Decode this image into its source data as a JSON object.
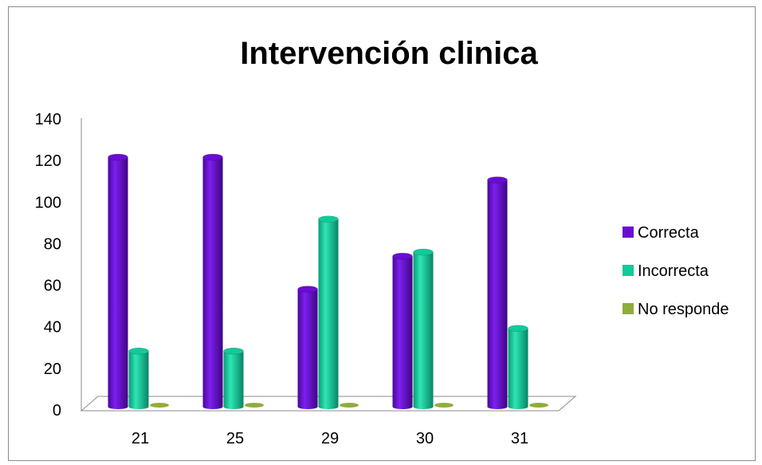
{
  "chart_data": {
    "type": "bar",
    "title": "Intervención clinica",
    "xlabel": "",
    "ylabel": "",
    "categories": [
      "21",
      "25",
      "29",
      "30",
      "31"
    ],
    "series": [
      {
        "name": "Correcta",
        "values": [
          121,
          121,
          57,
          73,
          110
        ]
      },
      {
        "name": "Incorrecta",
        "values": [
          27,
          27,
          91,
          75,
          38
        ]
      },
      {
        "name": "No responde",
        "values": [
          0,
          0,
          0,
          0,
          0
        ]
      }
    ],
    "ylim": [
      0,
      140
    ],
    "yticks": [
      "0",
      "20",
      "40",
      "60",
      "80",
      "100",
      "120",
      "140"
    ],
    "grid": false,
    "legend_position": "right",
    "style": "3d-cylinder"
  },
  "colors": {
    "Correcta": "#6a0dd1",
    "Incorrecta": "#12c99a",
    "No responde": "#8fad3a"
  }
}
